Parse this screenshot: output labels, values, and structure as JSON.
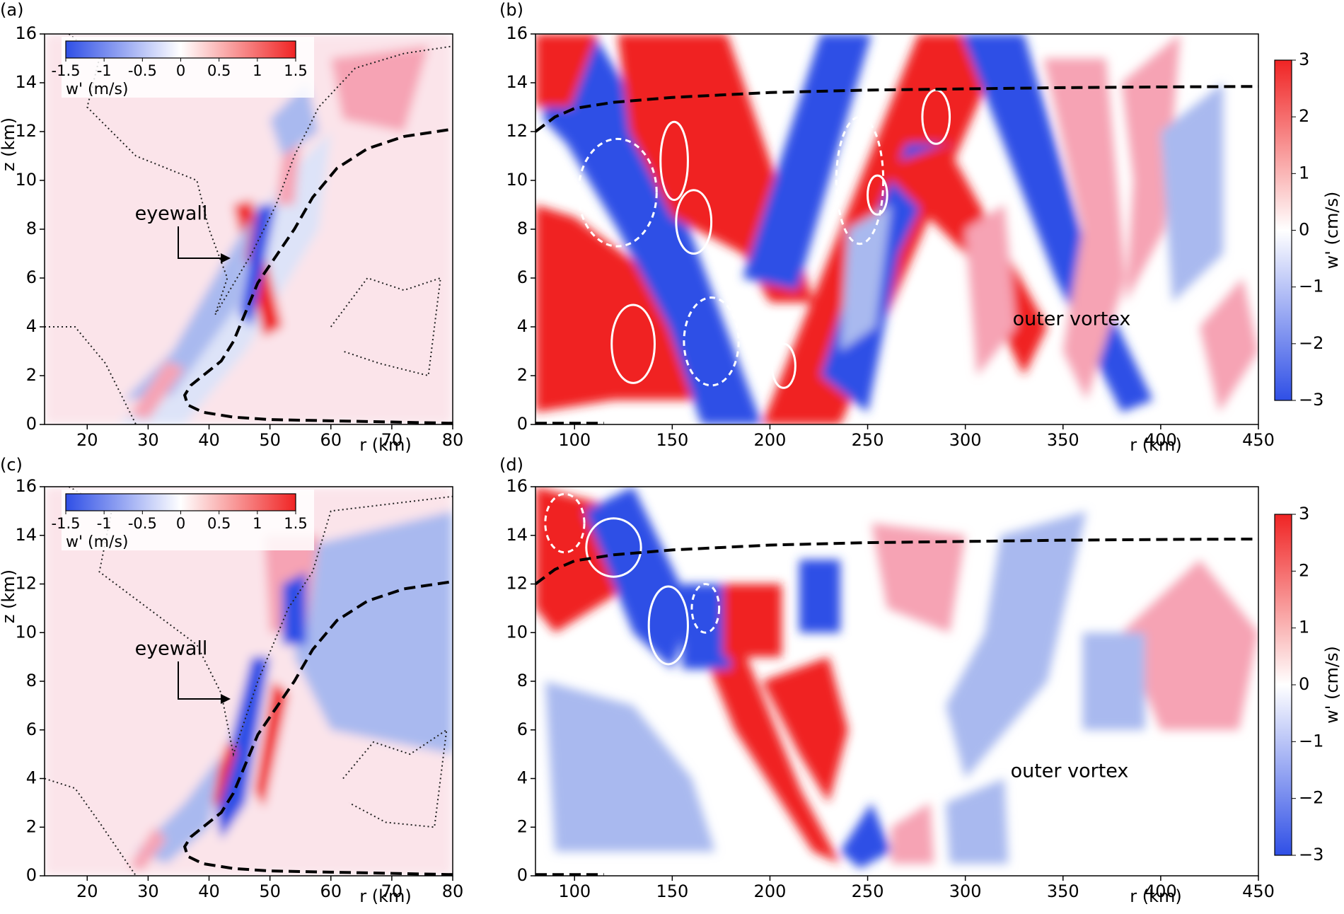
{
  "chart_data": [
    {
      "type": "contour",
      "panel_label": "(a)",
      "xlabel": "r (km)",
      "ylabel": "z (km)",
      "xlim": [
        13,
        80
      ],
      "ylim": [
        0,
        16
      ],
      "xticks": [
        20,
        30,
        40,
        50,
        60,
        70,
        80
      ],
      "yticks": [
        0,
        2,
        4,
        6,
        8,
        10,
        12,
        14,
        16
      ],
      "colorbar": {
        "placement": "inset",
        "label": "w' (m/s)",
        "lim": [
          -1.5,
          1.5
        ],
        "ticks": [
          -1.5,
          -1,
          -0.5,
          0,
          0.5,
          1,
          1.5
        ]
      },
      "annotation": "eyewall",
      "series": [
        {
          "color": "#000000",
          "x": [
            80,
            70,
            60,
            50,
            44,
            39,
            36.5,
            36,
            37,
            39,
            42,
            44,
            46,
            48,
            51,
            54,
            57,
            61,
            66,
            72,
            80
          ],
          "y": [
            0.05,
            0.1,
            0.15,
            0.2,
            0.3,
            0.5,
            0.8,
            1.2,
            1.6,
            2.0,
            2.6,
            3.4,
            4.6,
            5.8,
            6.9,
            8.0,
            9.3,
            10.5,
            11.3,
            11.8,
            12.1
          ]
        }
      ]
    },
    {
      "type": "contour",
      "panel_label": "(b)",
      "xlabel": "r (km)",
      "xlim": [
        80,
        450
      ],
      "ylim": [
        0,
        16
      ],
      "xticks": [
        100,
        150,
        200,
        250,
        300,
        350,
        400,
        450
      ],
      "yticks": [
        0,
        2,
        4,
        6,
        8,
        10,
        12,
        14,
        16
      ],
      "colorbar": {
        "placement": "right",
        "label": "w' (cm/s)",
        "lim": [
          -3,
          3
        ],
        "ticks": [
          {
            "value": -3,
            "label": "−3"
          },
          {
            "value": -2,
            "label": "−2"
          },
          {
            "value": -1,
            "label": "−1"
          },
          0,
          1,
          2,
          3
        ]
      },
      "annotation": "outer vortex",
      "series": [
        {
          "color": "#000000",
          "x": [
            80,
            90,
            100,
            120,
            150,
            200,
            250,
            300,
            350,
            400,
            450
          ],
          "y": [
            12,
            12.6,
            12.95,
            13.2,
            13.4,
            13.6,
            13.7,
            13.75,
            13.8,
            13.83,
            13.85
          ]
        },
        {
          "color": "#000000",
          "x": [
            80,
            115
          ],
          "y": [
            0.05,
            0.05
          ]
        }
      ]
    },
    {
      "type": "contour",
      "panel_label": "(c)",
      "xlabel": "r (km)",
      "ylabel": "z (km)",
      "xlim": [
        13,
        80
      ],
      "ylim": [
        0,
        16
      ],
      "xticks": [
        20,
        30,
        40,
        50,
        60,
        70,
        80
      ],
      "yticks": [
        0,
        2,
        4,
        6,
        8,
        10,
        12,
        14,
        16
      ],
      "colorbar": {
        "placement": "inset",
        "label": "w' (m/s)",
        "lim": [
          -1.5,
          1.5
        ],
        "ticks": [
          -1.5,
          -1,
          -0.5,
          0,
          0.5,
          1,
          1.5
        ]
      },
      "annotation": "eyewall",
      "series": [
        {
          "color": "#000000",
          "x": [
            80,
            70,
            60,
            50,
            44,
            39,
            36.5,
            36,
            37,
            39,
            42,
            44,
            46,
            48,
            51,
            54,
            57,
            61,
            66,
            72,
            80
          ],
          "y": [
            0.05,
            0.1,
            0.15,
            0.2,
            0.3,
            0.5,
            0.8,
            1.2,
            1.6,
            2.0,
            2.6,
            3.4,
            4.6,
            5.8,
            6.9,
            8.0,
            9.3,
            10.5,
            11.3,
            11.8,
            12.1
          ]
        }
      ]
    },
    {
      "type": "contour",
      "panel_label": "(d)",
      "xlabel": "r (km)",
      "xlim": [
        80,
        450
      ],
      "ylim": [
        0,
        16
      ],
      "xticks": [
        100,
        150,
        200,
        250,
        300,
        350,
        400,
        450
      ],
      "yticks": [
        0,
        2,
        4,
        6,
        8,
        10,
        12,
        14,
        16
      ],
      "colorbar": {
        "placement": "right",
        "label": "w' (cm/s)",
        "lim": [
          -3,
          3
        ],
        "ticks": [
          {
            "value": -3,
            "label": "−3"
          },
          {
            "value": -2,
            "label": "−2"
          },
          {
            "value": -1,
            "label": "−1"
          },
          0,
          1,
          2,
          3
        ]
      },
      "annotation": "outer vortex",
      "series": [
        {
          "color": "#000000",
          "x": [
            80,
            90,
            100,
            120,
            150,
            200,
            250,
            300,
            350,
            400,
            450
          ],
          "y": [
            12,
            12.6,
            12.95,
            13.2,
            13.4,
            13.6,
            13.7,
            13.75,
            13.8,
            13.83,
            13.85
          ]
        },
        {
          "color": "#000000",
          "x": [
            80,
            115
          ],
          "y": [
            0.05,
            0.05
          ]
        }
      ]
    }
  ]
}
